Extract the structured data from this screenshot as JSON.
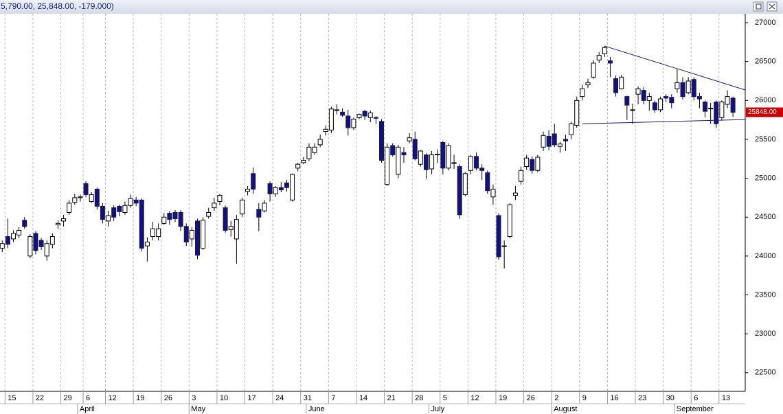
{
  "header_text": "5,790.00, 25,848.00, -179.000)",
  "chart_data": {
    "type": "candlestick",
    "up_color": "#ffffff",
    "down_color": "#14146e",
    "line_color": "#1a1a8c",
    "last_price_label": "25848.00",
    "last_price_color": "#cc0000",
    "xlim": [
      -0.4,
      133.2
    ],
    "ylim": [
      22260,
      27115
    ],
    "yticks": [
      22500,
      23000,
      23500,
      24000,
      24500,
      25000,
      25500,
      26000,
      26500,
      27000
    ],
    "xticks": [
      {
        "value": 0.5,
        "label": "15"
      },
      {
        "value": 5.5,
        "label": "22"
      },
      {
        "value": 10.5,
        "label": "29"
      },
      {
        "value": 14.5,
        "label": "6"
      },
      {
        "value": 18.5,
        "label": "12"
      },
      {
        "value": 23.5,
        "label": "19"
      },
      {
        "value": 28.5,
        "label": "26"
      },
      {
        "value": 33.5,
        "label": "3"
      },
      {
        "value": 38.5,
        "label": "10"
      },
      {
        "value": 43.5,
        "label": "17"
      },
      {
        "value": 48.5,
        "label": "24"
      },
      {
        "value": 53.5,
        "label": "31"
      },
      {
        "value": 58.5,
        "label": "7"
      },
      {
        "value": 63.5,
        "label": "14"
      },
      {
        "value": 68.5,
        "label": "21"
      },
      {
        "value": 73.5,
        "label": "28"
      },
      {
        "value": 78.5,
        "label": "5"
      },
      {
        "value": 83.5,
        "label": "12"
      },
      {
        "value": 88.5,
        "label": "19"
      },
      {
        "value": 93.5,
        "label": "26"
      },
      {
        "value": 98.5,
        "label": "2"
      },
      {
        "value": 103.5,
        "label": "9"
      },
      {
        "value": 108.5,
        "label": "16"
      },
      {
        "value": 113.5,
        "label": "23"
      },
      {
        "value": 118.5,
        "label": "30"
      },
      {
        "value": 123.5,
        "label": "6"
      },
      {
        "value": 128.5,
        "label": "13"
      }
    ],
    "month_ticks": [
      {
        "value": 13.5,
        "label": "April"
      },
      {
        "value": 33.5,
        "label": "May"
      },
      {
        "value": 54.5,
        "label": "June"
      },
      {
        "value": 76.5,
        "label": "July"
      },
      {
        "value": 98.5,
        "label": "August"
      },
      {
        "value": 120.5,
        "label": "September"
      }
    ],
    "open": [
      24100,
      24250,
      24220,
      24270,
      24460,
      24000,
      24290,
      24200,
      24000,
      24150,
      24400,
      24450,
      24560,
      24690,
      24750,
      24930,
      24700,
      24860,
      24640,
      24450,
      24620,
      24640,
      24560,
      24650,
      24720,
      24720,
      24130,
      24250,
      24250,
      24420,
      24550,
      24560,
      24560,
      24380,
      24220,
      24450,
      24100,
      24510,
      24620,
      24700,
      24620,
      24340,
      24220,
      24540,
      24830,
      25060,
      24600,
      24580,
      24930,
      24800,
      24880,
      24940,
      24720,
      25130,
      25200,
      25250,
      25330,
      25430,
      25600,
      25620,
      25870,
      25850,
      25800,
      25650,
      25780,
      25860,
      25780,
      25780,
      25730,
      24920,
      25420,
      25050,
      25330,
      25480,
      25500,
      25180,
      25300,
      25120,
      25300,
      25460,
      25130,
      25190,
      25150,
      24790,
      25100,
      25280,
      25130,
      25070,
      24760,
      24520,
      24120,
      24250,
      24780,
      24960,
      25150,
      25240,
      25100,
      25400,
      25540,
      25570,
      25410,
      25500,
      25560,
      25680,
      26050,
      26200,
      26300,
      26520,
      26600,
      26510,
      26280,
      26150,
      26050,
      25880,
      26080,
      26130,
      26000,
      25970,
      25880,
      26050,
      26040,
      26150,
      26230,
      26100,
      26270,
      26050,
      25980,
      25900,
      25980,
      25780,
      25950,
      26030
    ],
    "high": [
      24200,
      24480,
      24330,
      24370,
      24500,
      24280,
      24320,
      24230,
      24200,
      24290,
      24460,
      24530,
      24720,
      24800,
      24790,
      24960,
      24820,
      24880,
      24680,
      24580,
      24650,
      24660,
      24700,
      24790,
      24760,
      24740,
      24240,
      24440,
      24420,
      24550,
      24580,
      24590,
      24590,
      24420,
      24370,
      24480,
      24500,
      24620,
      24750,
      24800,
      24650,
      24450,
      24530,
      24750,
      24900,
      25140,
      24680,
      24720,
      24960,
      24900,
      24950,
      24980,
      25060,
      25200,
      25270,
      25450,
      25450,
      25560,
      25680,
      25920,
      25950,
      25900,
      25880,
      25780,
      25830,
      25880,
      25870,
      25800,
      25760,
      25450,
      25450,
      25430,
      25400,
      25580,
      25600,
      25360,
      25320,
      25350,
      25370,
      25480,
      25450,
      25300,
      25180,
      25080,
      25300,
      25330,
      25180,
      25100,
      24920,
      24550,
      24200,
      24680,
      24900,
      25150,
      25300,
      25280,
      25300,
      25600,
      25620,
      25700,
      25470,
      25560,
      25730,
      26050,
      26200,
      26280,
      26520,
      26620,
      26700,
      26560,
      26320,
      26330,
      26060,
      25960,
      26180,
      26170,
      26100,
      26000,
      26050,
      26080,
      26080,
      26400,
      26300,
      26300,
      26300,
      26100,
      26000,
      25970,
      26000,
      26000,
      26130,
      26050
    ],
    "low": [
      24050,
      24100,
      24180,
      24230,
      24350,
      23970,
      24020,
      24080,
      23940,
      24100,
      24350,
      24380,
      24530,
      24660,
      24700,
      24760,
      24680,
      24600,
      24420,
      24380,
      24450,
      24510,
      24530,
      24620,
      24640,
      24060,
      23930,
      24200,
      24200,
      24400,
      24400,
      24440,
      24320,
      24130,
      24120,
      23960,
      24080,
      24480,
      24580,
      24650,
      24300,
      24250,
      23900,
      24500,
      24780,
      24800,
      24320,
      24560,
      24700,
      24760,
      24820,
      24830,
      24700,
      25090,
      25180,
      25220,
      25300,
      25400,
      25550,
      25580,
      25820,
      25790,
      25550,
      25620,
      25760,
      25750,
      25720,
      25700,
      25200,
      24900,
      25280,
      25000,
      25200,
      25450,
      25230,
      25150,
      24990,
      25050,
      25200,
      25050,
      25100,
      25120,
      24480,
      24770,
      25050,
      25100,
      24980,
      24800,
      24660,
      23950,
      23840,
      24230,
      24720,
      24920,
      25110,
      25060,
      25080,
      25350,
      25360,
      25400,
      25330,
      25350,
      25500,
      25650,
      26000,
      26160,
      26280,
      26480,
      26560,
      26300,
      26050,
      26140,
      25750,
      25700,
      25950,
      25950,
      25870,
      25840,
      25850,
      25980,
      25900,
      26100,
      26010,
      26080,
      26000,
      25900,
      25780,
      25700,
      25650,
      25740,
      25900,
      25790
    ],
    "close": [
      24160,
      24150,
      24290,
      24330,
      24380,
      24250,
      24070,
      24120,
      24160,
      24250,
      24420,
      24480,
      24680,
      24750,
      24760,
      24790,
      24790,
      24640,
      24470,
      24520,
      24500,
      24570,
      24650,
      24740,
      24680,
      24100,
      24180,
      24350,
      24350,
      24500,
      24470,
      24480,
      24380,
      24180,
      24330,
      24010,
      24460,
      24560,
      24680,
      24780,
      24330,
      24380,
      24470,
      24720,
      24860,
      24860,
      24500,
      24680,
      24800,
      24880,
      24850,
      24880,
      25050,
      25180,
      25230,
      25400,
      25400,
      25500,
      25630,
      25890,
      25880,
      25810,
      25650,
      25760,
      25820,
      25800,
      25840,
      25770,
      25230,
      25400,
      25300,
      25400,
      25300,
      25520,
      25250,
      25350,
      25110,
      25300,
      25310,
      25130,
      25420,
      25200,
      24530,
      25060,
      25280,
      25130,
      25100,
      24840,
      24860,
      23990,
      24130,
      24660,
      24810,
      25100,
      25260,
      25100,
      25270,
      25550,
      25410,
      25430,
      25440,
      25480,
      25700,
      26000,
      26150,
      26230,
      26480,
      26580,
      26680,
      26480,
      26100,
      26300,
      25940,
      25880,
      26150,
      26000,
      26050,
      25880,
      26020,
      26030,
      25970,
      26230,
      26050,
      26250,
      26050,
      26020,
      25860,
      25900,
      25700,
      25980,
      26050,
      25848
    ],
    "trendlines": [
      {
        "x": [
          108,
          133.2
        ],
        "y": [
          26700,
          26135
        ]
      },
      {
        "x": [
          104,
          133.2
        ],
        "y": [
          25700,
          25755
        ]
      }
    ]
  }
}
